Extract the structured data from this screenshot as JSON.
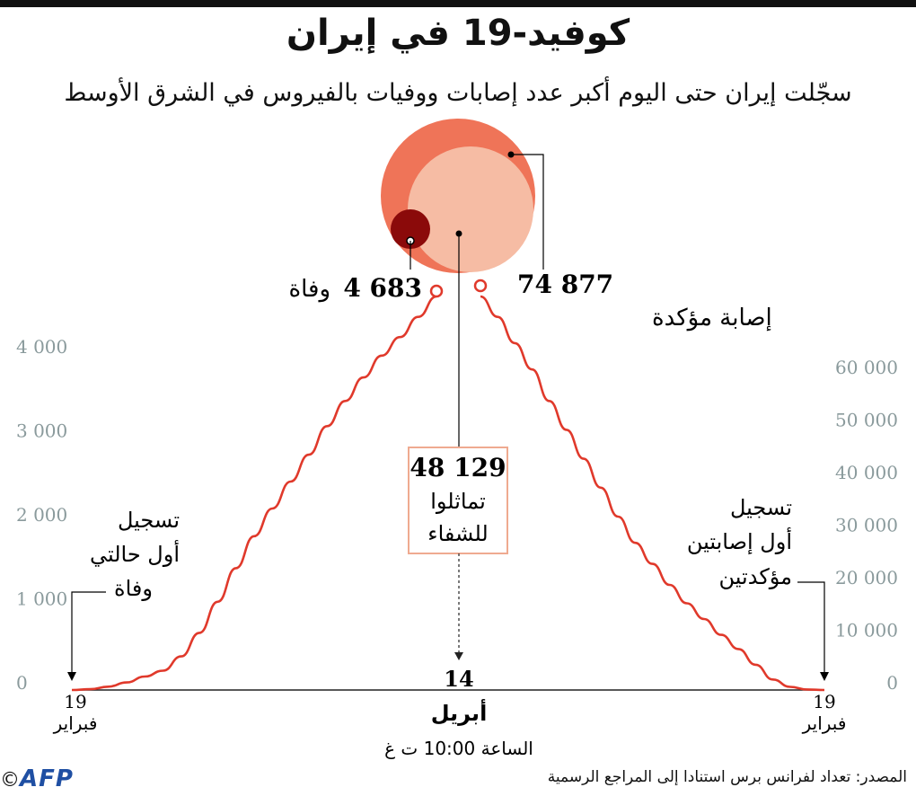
{
  "header": {
    "title": "كوفيد-19 في إيران",
    "subtitle": "سجّلت إيران حتى اليوم أكبر عدد إصابات ووفيات بالفيروس في الشرق الأوسط"
  },
  "colors": {
    "cases_line": "#e0392b",
    "confirmed_circle": "#ef7458",
    "recovered_circle": "#f6bca4",
    "deaths_circle": "#8b0a0a",
    "axis_text": "#8a9a9c",
    "box_border": "#efaa90"
  },
  "chart_data": {
    "type": "line",
    "y_left": {
      "ticks": [
        0,
        1000,
        2000,
        3000,
        4000
      ],
      "tick_labels": [
        "0",
        "1 000",
        "2 000",
        "3 000",
        "4 000"
      ],
      "range": [
        0,
        4683
      ]
    },
    "y_right": {
      "ticks": [
        0,
        10000,
        20000,
        30000,
        40000,
        50000,
        60000
      ],
      "tick_labels": [
        "0",
        "10 000",
        "20 000",
        "30 000",
        "40 000",
        "50 000",
        "60 000"
      ],
      "range": [
        0,
        74877
      ]
    },
    "x_labels": {
      "start_day": "19",
      "start_month": "فبراير",
      "end_day": "19",
      "end_month": "فبراير",
      "center_day": "14",
      "center_month": "أبريل",
      "time_note": "الساعة 10:00 ت غ"
    },
    "series": [
      {
        "name": "وفاة",
        "axis": "left",
        "points": [
          [
            0,
            0
          ],
          [
            0.05,
            10
          ],
          [
            0.1,
            40
          ],
          [
            0.15,
            90
          ],
          [
            0.2,
            160
          ],
          [
            0.25,
            230
          ],
          [
            0.3,
            400
          ],
          [
            0.35,
            680
          ],
          [
            0.4,
            1050
          ],
          [
            0.45,
            1450
          ],
          [
            0.5,
            1830
          ],
          [
            0.55,
            2160
          ],
          [
            0.6,
            2480
          ],
          [
            0.65,
            2800
          ],
          [
            0.7,
            3140
          ],
          [
            0.75,
            3440
          ],
          [
            0.8,
            3720
          ],
          [
            0.85,
            3980
          ],
          [
            0.9,
            4200
          ],
          [
            0.95,
            4440
          ],
          [
            1,
            4683
          ]
        ]
      },
      {
        "name": "إصابة مؤكدة",
        "axis": "right",
        "points": [
          [
            0,
            74877
          ],
          [
            0.05,
            71000
          ],
          [
            0.1,
            66000
          ],
          [
            0.15,
            61000
          ],
          [
            0.2,
            55000
          ],
          [
            0.25,
            49500
          ],
          [
            0.3,
            44000
          ],
          [
            0.35,
            38500
          ],
          [
            0.4,
            33000
          ],
          [
            0.45,
            28000
          ],
          [
            0.5,
            24000
          ],
          [
            0.55,
            20000
          ],
          [
            0.6,
            16500
          ],
          [
            0.65,
            13500
          ],
          [
            0.7,
            10500
          ],
          [
            0.75,
            7800
          ],
          [
            0.8,
            4800
          ],
          [
            0.85,
            2000
          ],
          [
            0.9,
            600
          ],
          [
            0.95,
            100
          ],
          [
            1,
            0
          ]
        ]
      }
    ],
    "totals": {
      "deaths_value": "4 683",
      "deaths_label": "وفاة",
      "confirmed_value": "74 877",
      "confirmed_label": "إصابة مؤكدة",
      "recovered_value": "48 129",
      "recovered_label_line1": "تماثلوا",
      "recovered_label_line2": "للشفاء"
    },
    "annotations": {
      "left_line1": "تسجيل",
      "left_line2": "أول حالتي",
      "left_line3": "وفاة",
      "right_line1": "تسجيل",
      "right_line2": "أول إصابتين",
      "right_line3": "مؤكدتين"
    }
  },
  "footer": {
    "source": "المصدر: تعداد لفرانس برس استنادا إلى المراجع الرسمية",
    "logo": "AFP",
    "copyright": "©"
  }
}
